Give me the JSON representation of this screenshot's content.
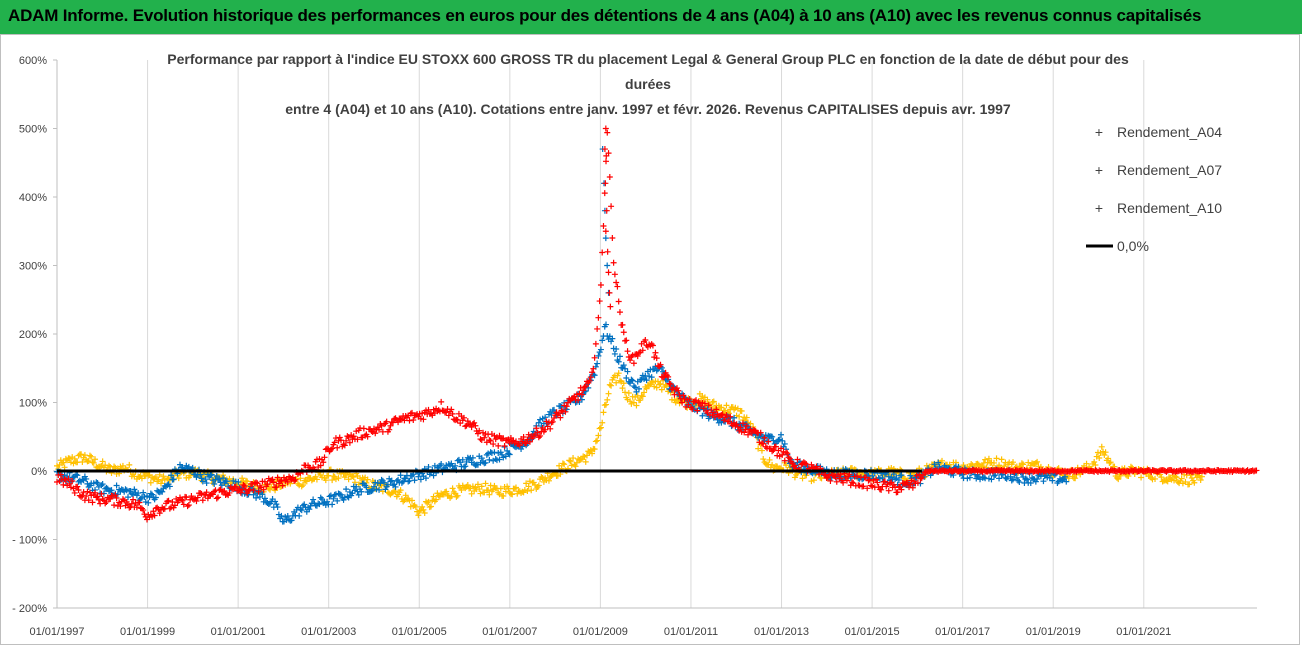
{
  "header": {
    "banner": "ADAM Informe. Evolution historique des performances en euros pour des détentions de 4 ans (A04) à 10 ans (A10) avec les revenus connus capitalisés"
  },
  "chart_data": {
    "type": "scatter",
    "title_lines": [
      "Performance par rapport à l'indice EU STOXX 600 GROSS TR  du placement Legal & General Group PLC en fonction de la date de début pour des",
      "durées",
      "entre 4 (A04) et 10 ans (A10).  Cotations entre janv. 1997 et févr. 2026. Revenus CAPITALISES depuis avr. 1997"
    ],
    "xlabel": "",
    "ylabel": "",
    "x_range": [
      1997.0,
      2023.5
    ],
    "x_ticks": [
      {
        "value": 1997,
        "label": "01/01/1997"
      },
      {
        "value": 1999,
        "label": "01/01/1999"
      },
      {
        "value": 2001,
        "label": "01/01/2001"
      },
      {
        "value": 2003,
        "label": "01/01/2003"
      },
      {
        "value": 2005,
        "label": "01/01/2005"
      },
      {
        "value": 2007,
        "label": "01/01/2007"
      },
      {
        "value": 2009,
        "label": "01/01/2009"
      },
      {
        "value": 2011,
        "label": "01/01/2011"
      },
      {
        "value": 2013,
        "label": "01/01/2013"
      },
      {
        "value": 2015,
        "label": "01/01/2015"
      },
      {
        "value": 2017,
        "label": "01/01/2017"
      },
      {
        "value": 2019,
        "label": "01/01/2019"
      },
      {
        "value": 2021,
        "label": "01/01/2021"
      }
    ],
    "ylim": [
      -200,
      600
    ],
    "y_ticks": [
      {
        "value": 600,
        "label": "600%"
      },
      {
        "value": 500,
        "label": "500%"
      },
      {
        "value": 400,
        "label": "400%"
      },
      {
        "value": 300,
        "label": "300%"
      },
      {
        "value": 200,
        "label": "200%"
      },
      {
        "value": 100,
        "label": "100%"
      },
      {
        "value": 0,
        "label": "0%"
      },
      {
        "value": -100,
        "label": "- 100%"
      },
      {
        "value": -200,
        "label": "- 200%"
      }
    ],
    "grid": "vertical",
    "legend_position": "top-right",
    "zero_line": {
      "name": "0,0%",
      "value": 0,
      "color": "#000000"
    },
    "series": [
      {
        "name": "Rendement_A04",
        "color": "#ffc000",
        "end": 2022.3,
        "points": [
          [
            1997.0,
            5
          ],
          [
            1997.3,
            15
          ],
          [
            1997.6,
            20
          ],
          [
            1997.9,
            10
          ],
          [
            1998.2,
            0
          ],
          [
            1998.5,
            5
          ],
          [
            1998.8,
            -5
          ],
          [
            1999.1,
            -10
          ],
          [
            1999.4,
            -15
          ],
          [
            1999.7,
            -5
          ],
          [
            2000.0,
            -2
          ],
          [
            2000.3,
            -8
          ],
          [
            2000.6,
            -12
          ],
          [
            2000.9,
            -15
          ],
          [
            2001.2,
            -20
          ],
          [
            2001.5,
            -25
          ],
          [
            2001.8,
            -22
          ],
          [
            2002.1,
            -15
          ],
          [
            2002.4,
            -15
          ],
          [
            2002.7,
            -10
          ],
          [
            2003.0,
            -5
          ],
          [
            2003.3,
            -8
          ],
          [
            2003.6,
            -10
          ],
          [
            2003.9,
            -20
          ],
          [
            2004.2,
            -25
          ],
          [
            2004.5,
            -30
          ],
          [
            2004.8,
            -45
          ],
          [
            2005.0,
            -60
          ],
          [
            2005.2,
            -50
          ],
          [
            2005.5,
            -35
          ],
          [
            2005.8,
            -30
          ],
          [
            2006.1,
            -28
          ],
          [
            2006.4,
            -25
          ],
          [
            2006.7,
            -30
          ],
          [
            2007.0,
            -28
          ],
          [
            2007.3,
            -25
          ],
          [
            2007.6,
            -18
          ],
          [
            2007.9,
            -5
          ],
          [
            2008.2,
            5
          ],
          [
            2008.5,
            15
          ],
          [
            2008.8,
            25
          ],
          [
            2009.0,
            60
          ],
          [
            2009.2,
            120
          ],
          [
            2009.4,
            140
          ],
          [
            2009.6,
            110
          ],
          [
            2009.8,
            100
          ],
          [
            2010.0,
            120
          ],
          [
            2010.3,
            130
          ],
          [
            2010.6,
            110
          ],
          [
            2010.9,
            100
          ],
          [
            2011.2,
            105
          ],
          [
            2011.5,
            95
          ],
          [
            2011.8,
            90
          ],
          [
            2012.1,
            85
          ],
          [
            2012.4,
            55
          ],
          [
            2012.6,
            20
          ],
          [
            2012.8,
            5
          ],
          [
            2013.1,
            5
          ],
          [
            2013.4,
            -5
          ],
          [
            2013.8,
            -8
          ],
          [
            2014.2,
            -5
          ],
          [
            2014.6,
            -2
          ],
          [
            2015.0,
            -5
          ],
          [
            2015.4,
            -2
          ],
          [
            2015.8,
            -8
          ],
          [
            2016.2,
            0
          ],
          [
            2016.6,
            10
          ],
          [
            2017.0,
            5
          ],
          [
            2017.4,
            10
          ],
          [
            2017.8,
            12
          ],
          [
            2018.2,
            5
          ],
          [
            2018.6,
            8
          ],
          [
            2019.0,
            0
          ],
          [
            2019.4,
            -5
          ],
          [
            2019.8,
            5
          ],
          [
            2020.1,
            30
          ],
          [
            2020.4,
            -5
          ],
          [
            2020.8,
            0
          ],
          [
            2021.2,
            -5
          ],
          [
            2021.6,
            -10
          ],
          [
            2022.0,
            -12
          ],
          [
            2022.3,
            -15
          ]
        ]
      },
      {
        "name": "Rendement_A07",
        "color": "#0070c0",
        "end": 2019.3,
        "points": [
          [
            1997.0,
            -5
          ],
          [
            1997.3,
            -10
          ],
          [
            1997.6,
            -15
          ],
          [
            1997.9,
            -25
          ],
          [
            1998.2,
            -28
          ],
          [
            1998.5,
            -30
          ],
          [
            1998.8,
            -35
          ],
          [
            1999.1,
            -40
          ],
          [
            1999.4,
            -25
          ],
          [
            1999.7,
            5
          ],
          [
            2000.0,
            0
          ],
          [
            2000.3,
            -10
          ],
          [
            2000.6,
            -15
          ],
          [
            2000.9,
            -20
          ],
          [
            2001.2,
            -28
          ],
          [
            2001.5,
            -35
          ],
          [
            2001.8,
            -50
          ],
          [
            2002.0,
            -75
          ],
          [
            2002.3,
            -60
          ],
          [
            2002.6,
            -50
          ],
          [
            2002.9,
            -45
          ],
          [
            2003.2,
            -40
          ],
          [
            2003.5,
            -30
          ],
          [
            2003.8,
            -25
          ],
          [
            2004.1,
            -20
          ],
          [
            2004.4,
            -18
          ],
          [
            2004.7,
            -10
          ],
          [
            2005.0,
            -5
          ],
          [
            2005.3,
            0
          ],
          [
            2005.6,
            5
          ],
          [
            2005.9,
            10
          ],
          [
            2006.2,
            15
          ],
          [
            2006.5,
            20
          ],
          [
            2006.8,
            25
          ],
          [
            2007.1,
            35
          ],
          [
            2007.4,
            45
          ],
          [
            2007.7,
            70
          ],
          [
            2008.0,
            85
          ],
          [
            2008.3,
            95
          ],
          [
            2008.6,
            110
          ],
          [
            2008.9,
            150
          ],
          [
            2009.1,
            210
          ],
          [
            2009.3,
            180
          ],
          [
            2009.5,
            150
          ],
          [
            2009.8,
            120
          ],
          [
            2010.0,
            140
          ],
          [
            2010.3,
            150
          ],
          [
            2010.6,
            120
          ],
          [
            2010.9,
            100
          ],
          [
            2011.2,
            90
          ],
          [
            2011.5,
            80
          ],
          [
            2011.8,
            75
          ],
          [
            2012.1,
            65
          ],
          [
            2012.4,
            55
          ],
          [
            2012.7,
            45
          ],
          [
            2013.0,
            50
          ],
          [
            2013.2,
            10
          ],
          [
            2013.5,
            5
          ],
          [
            2013.8,
            0
          ],
          [
            2014.2,
            -5
          ],
          [
            2014.6,
            -5
          ],
          [
            2015.0,
            -5
          ],
          [
            2015.4,
            -10
          ],
          [
            2015.8,
            -15
          ],
          [
            2016.1,
            -10
          ],
          [
            2016.4,
            5
          ],
          [
            2016.8,
            0
          ],
          [
            2017.2,
            -5
          ],
          [
            2017.6,
            -5
          ],
          [
            2018.0,
            -5
          ],
          [
            2018.4,
            -10
          ],
          [
            2018.8,
            -10
          ],
          [
            2019.3,
            -12
          ]
        ]
      },
      {
        "name": "Rendement_A10",
        "color": "#ff0000",
        "end": 2023.5,
        "points": [
          [
            1997.0,
            -10
          ],
          [
            1997.3,
            -20
          ],
          [
            1997.6,
            -35
          ],
          [
            1997.9,
            -40
          ],
          [
            1998.2,
            -42
          ],
          [
            1998.5,
            -45
          ],
          [
            1998.8,
            -50
          ],
          [
            1999.0,
            -65
          ],
          [
            1999.2,
            -55
          ],
          [
            1999.5,
            -50
          ],
          [
            1999.8,
            -45
          ],
          [
            2000.1,
            -40
          ],
          [
            2000.4,
            -35
          ],
          [
            2000.7,
            -30
          ],
          [
            2001.0,
            -28
          ],
          [
            2001.3,
            -25
          ],
          [
            2001.6,
            -20
          ],
          [
            2001.9,
            -15
          ],
          [
            2002.2,
            -10
          ],
          [
            2002.5,
            5
          ],
          [
            2002.8,
            10
          ],
          [
            2003.1,
            40
          ],
          [
            2003.4,
            45
          ],
          [
            2003.7,
            55
          ],
          [
            2004.0,
            60
          ],
          [
            2004.3,
            65
          ],
          [
            2004.6,
            75
          ],
          [
            2004.9,
            80
          ],
          [
            2005.2,
            85
          ],
          [
            2005.5,
            95
          ],
          [
            2005.8,
            80
          ],
          [
            2006.1,
            70
          ],
          [
            2006.4,
            50
          ],
          [
            2006.7,
            45
          ],
          [
            2007.0,
            40
          ],
          [
            2007.3,
            45
          ],
          [
            2007.6,
            55
          ],
          [
            2007.9,
            70
          ],
          [
            2008.2,
            90
          ],
          [
            2008.5,
            110
          ],
          [
            2008.8,
            130
          ],
          [
            2009.0,
            250
          ],
          [
            2009.15,
            500
          ],
          [
            2009.3,
            300
          ],
          [
            2009.5,
            200
          ],
          [
            2009.7,
            160
          ],
          [
            2009.9,
            180
          ],
          [
            2010.1,
            190
          ],
          [
            2010.3,
            150
          ],
          [
            2010.6,
            120
          ],
          [
            2010.9,
            100
          ],
          [
            2011.2,
            95
          ],
          [
            2011.5,
            85
          ],
          [
            2011.8,
            75
          ],
          [
            2012.1,
            65
          ],
          [
            2012.4,
            55
          ],
          [
            2012.7,
            40
          ],
          [
            2013.0,
            25
          ],
          [
            2013.3,
            10
          ],
          [
            2013.6,
            5
          ],
          [
            2013.9,
            -5
          ],
          [
            2014.3,
            -10
          ],
          [
            2014.7,
            -15
          ],
          [
            2015.1,
            -20
          ],
          [
            2015.5,
            -25
          ],
          [
            2015.9,
            -20
          ],
          [
            2016.2,
            0
          ],
          [
            2016.6,
            0
          ],
          [
            2017.0,
            0
          ],
          [
            2017.5,
            0
          ],
          [
            2018.0,
            0
          ],
          [
            2018.5,
            0
          ],
          [
            2019.0,
            0
          ],
          [
            2019.5,
            0
          ],
          [
            2020.0,
            0
          ],
          [
            2020.5,
            0
          ],
          [
            2021.0,
            0
          ],
          [
            2021.5,
            0
          ],
          [
            2022.0,
            0
          ],
          [
            2022.5,
            0
          ],
          [
            2023.0,
            0
          ],
          [
            2023.5,
            0
          ]
        ]
      }
    ]
  }
}
